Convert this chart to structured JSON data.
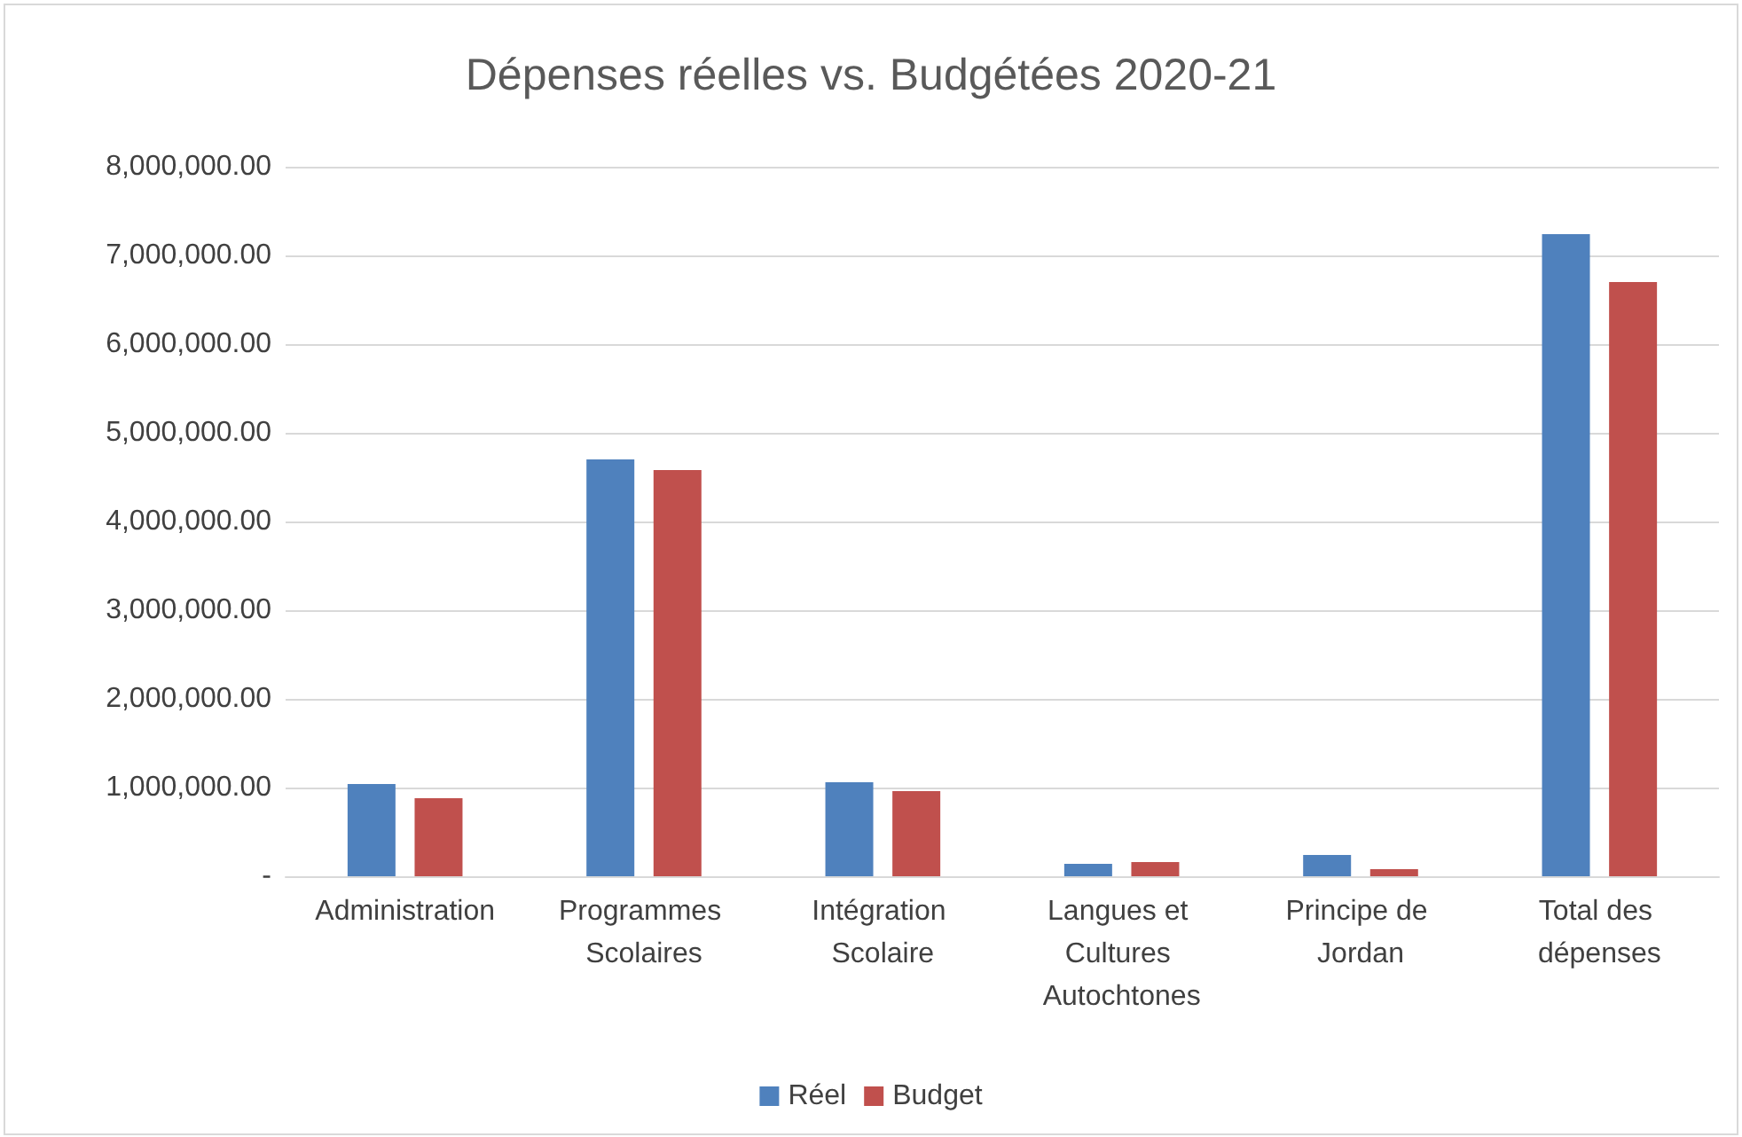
{
  "chart_data": {
    "type": "bar",
    "title": "Dépenses réelles vs. Budgétées 2020-21",
    "categories": [
      "Administration",
      "Programmes Scolaires",
      "Intégration Scolaire",
      "Langues et Cultures Autochtones",
      "Principe de Jordan",
      "Total des dépenses"
    ],
    "series": [
      {
        "name": "Réel",
        "color": "#4f81bd",
        "values": [
          1040000,
          4700000,
          1060000,
          140000,
          240000,
          7240000
        ]
      },
      {
        "name": "Budget",
        "color": "#c0504d",
        "values": [
          880000,
          4580000,
          960000,
          160000,
          80000,
          6700000
        ]
      }
    ],
    "ylim": [
      0,
      8000000
    ],
    "yticks": [
      {
        "value": 0,
        "label": "-"
      },
      {
        "value": 1000000,
        "label": "1,000,000.00"
      },
      {
        "value": 2000000,
        "label": "2,000,000.00"
      },
      {
        "value": 3000000,
        "label": "3,000,000.00"
      },
      {
        "value": 4000000,
        "label": "4,000,000.00"
      },
      {
        "value": 5000000,
        "label": "5,000,000.00"
      },
      {
        "value": 6000000,
        "label": "6,000,000.00"
      },
      {
        "value": 7000000,
        "label": "7,000,000.00"
      },
      {
        "value": 8000000,
        "label": "8,000,000.00"
      }
    ],
    "grid": "y",
    "legend": "bottom"
  }
}
